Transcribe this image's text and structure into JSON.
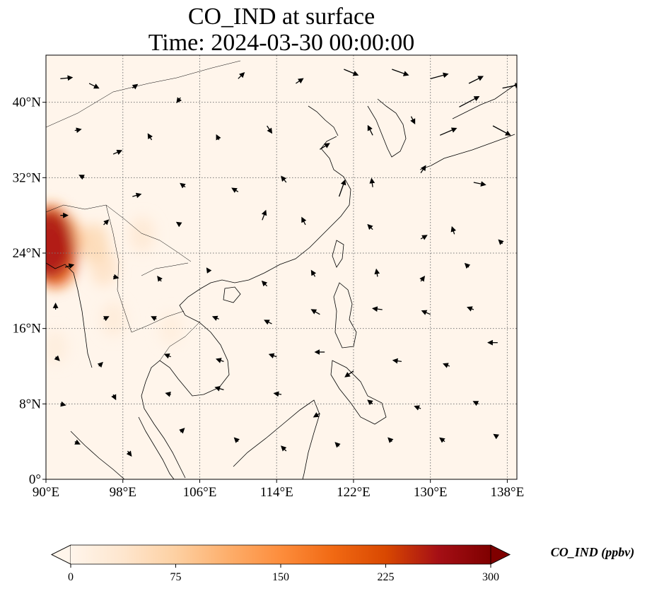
{
  "chart_data": {
    "type": "heatmap",
    "title_line1": "CO_IND at surface",
    "title_line2": "Time: 2024-03-30 00:00:00",
    "lon_range": [
      90,
      139
    ],
    "lat_range": [
      0,
      45
    ],
    "x_ticks": [
      {
        "value": 90,
        "label": "90°E"
      },
      {
        "value": 98,
        "label": "98°E"
      },
      {
        "value": 106,
        "label": "106°E"
      },
      {
        "value": 114,
        "label": "114°E"
      },
      {
        "value": 122,
        "label": "122°E"
      },
      {
        "value": 130,
        "label": "130°E"
      },
      {
        "value": 138,
        "label": "138°E"
      }
    ],
    "y_ticks": [
      {
        "value": 0,
        "label": "0°"
      },
      {
        "value": 8,
        "label": "8°N"
      },
      {
        "value": 16,
        "label": "16°N"
      },
      {
        "value": 24,
        "label": "24°N"
      },
      {
        "value": 32,
        "label": "32°N"
      },
      {
        "value": 40,
        "label": "40°N"
      }
    ],
    "grid": true,
    "colorbar": {
      "label": "CO_IND (ppbv)",
      "min": 0,
      "max": 300,
      "ticks": [
        {
          "value": 0,
          "label": "0"
        },
        {
          "value": 75,
          "label": "75"
        },
        {
          "value": 150,
          "label": "150"
        },
        {
          "value": 225,
          "label": "225"
        },
        {
          "value": 300,
          "label": "300"
        }
      ],
      "colormap": [
        "#fff5eb",
        "#fee6ce",
        "#fdd0a2",
        "#fdae6b",
        "#fd8d3c",
        "#f16913",
        "#d94801",
        "#a50f15",
        "#7f0000"
      ],
      "extend": "both"
    },
    "concentration_hotspots": [
      {
        "lon": 90.3,
        "lat": 25.0,
        "value": 260
      },
      {
        "lon": 91.0,
        "lat": 23.5,
        "value": 200
      },
      {
        "lon": 90.5,
        "lat": 26.2,
        "value": 170
      },
      {
        "lon": 92.0,
        "lat": 25.5,
        "value": 110
      },
      {
        "lon": 95.0,
        "lat": 25.0,
        "value": 60
      },
      {
        "lon": 96.0,
        "lat": 22.5,
        "value": 45
      },
      {
        "lon": 100.0,
        "lat": 26.0,
        "value": 30
      },
      {
        "lon": 97.0,
        "lat": 17.0,
        "value": 25
      },
      {
        "lon": 91.0,
        "lat": 14.0,
        "value": 20
      },
      {
        "lon": 103.0,
        "lat": 16.0,
        "value": 18
      }
    ],
    "wind_vectors": [
      {
        "lon": 91.5,
        "lat": 42.5,
        "u": 1.0,
        "v": 0.1
      },
      {
        "lon": 94.5,
        "lat": 42.0,
        "u": 0.8,
        "v": -0.4
      },
      {
        "lon": 99.0,
        "lat": 41.5,
        "u": 0.4,
        "v": 0.3
      },
      {
        "lon": 104.0,
        "lat": 40.5,
        "u": -0.3,
        "v": -0.4
      },
      {
        "lon": 110.0,
        "lat": 42.5,
        "u": 0.5,
        "v": 0.5
      },
      {
        "lon": 116.0,
        "lat": 42.0,
        "u": 0.6,
        "v": 0.4
      },
      {
        "lon": 121.0,
        "lat": 43.5,
        "u": 1.2,
        "v": -0.5
      },
      {
        "lon": 126.0,
        "lat": 43.5,
        "u": 1.4,
        "v": -0.5
      },
      {
        "lon": 130.0,
        "lat": 42.5,
        "u": 1.5,
        "v": 0.4
      },
      {
        "lon": 134.0,
        "lat": 42.0,
        "u": 1.2,
        "v": 0.6
      },
      {
        "lon": 137.5,
        "lat": 41.5,
        "u": 1.5,
        "v": 0.3
      },
      {
        "lon": 133.0,
        "lat": 39.5,
        "u": 1.7,
        "v": 0.9
      },
      {
        "lon": 136.5,
        "lat": 37.5,
        "u": 1.5,
        "v": -0.8
      },
      {
        "lon": 131.0,
        "lat": 36.5,
        "u": 1.4,
        "v": 0.6
      },
      {
        "lon": 93.0,
        "lat": 37.0,
        "u": 0.5,
        "v": 0.1
      },
      {
        "lon": 97.0,
        "lat": 34.5,
        "u": 0.7,
        "v": 0.3
      },
      {
        "lon": 101.0,
        "lat": 36.0,
        "u": -0.3,
        "v": 0.5
      },
      {
        "lon": 108.0,
        "lat": 36.0,
        "u": -0.2,
        "v": 0.4
      },
      {
        "lon": 113.0,
        "lat": 37.5,
        "u": 0.4,
        "v": -0.6
      },
      {
        "lon": 118.5,
        "lat": 35.0,
        "u": 0.8,
        "v": 0.5
      },
      {
        "lon": 124.0,
        "lat": 36.5,
        "u": -0.4,
        "v": 0.8
      },
      {
        "lon": 128.0,
        "lat": 38.5,
        "u": 0.3,
        "v": -0.6
      },
      {
        "lon": 94.0,
        "lat": 32.0,
        "u": -0.4,
        "v": 0.2
      },
      {
        "lon": 99.0,
        "lat": 30.0,
        "u": 0.7,
        "v": 0.2
      },
      {
        "lon": 104.5,
        "lat": 31.0,
        "u": -0.4,
        "v": 0.3
      },
      {
        "lon": 110.0,
        "lat": 30.5,
        "u": -0.5,
        "v": 0.3
      },
      {
        "lon": 115.0,
        "lat": 31.5,
        "u": -0.4,
        "v": 0.5
      },
      {
        "lon": 120.5,
        "lat": 30.0,
        "u": 0.5,
        "v": 1.4
      },
      {
        "lon": 124.0,
        "lat": 31.0,
        "u": -0.1,
        "v": 0.7
      },
      {
        "lon": 129.0,
        "lat": 32.5,
        "u": 0.4,
        "v": 0.6
      },
      {
        "lon": 134.5,
        "lat": 31.5,
        "u": 1.0,
        "v": -0.2
      },
      {
        "lon": 91.5,
        "lat": 28.0,
        "u": 0.6,
        "v": 0.0
      },
      {
        "lon": 96.0,
        "lat": 27.0,
        "u": 0.4,
        "v": 0.4
      },
      {
        "lon": 104.0,
        "lat": 27.0,
        "u": -0.3,
        "v": 0.2
      },
      {
        "lon": 112.5,
        "lat": 27.5,
        "u": 0.3,
        "v": 0.8
      },
      {
        "lon": 117.0,
        "lat": 27.0,
        "u": -0.3,
        "v": 0.6
      },
      {
        "lon": 124.0,
        "lat": 26.5,
        "u": -0.4,
        "v": 0.4
      },
      {
        "lon": 129.0,
        "lat": 25.5,
        "u": 0.5,
        "v": 0.3
      },
      {
        "lon": 132.5,
        "lat": 26.0,
        "u": -0.2,
        "v": 0.6
      },
      {
        "lon": 137.5,
        "lat": 25.0,
        "u": -0.3,
        "v": 0.3
      },
      {
        "lon": 92.0,
        "lat": 22.5,
        "u": 0.7,
        "v": 0.2
      },
      {
        "lon": 97.0,
        "lat": 21.5,
        "u": 0.4,
        "v": -0.1
      },
      {
        "lon": 102.0,
        "lat": 21.0,
        "u": -0.3,
        "v": 0.4
      },
      {
        "lon": 107.0,
        "lat": 22.0,
        "u": -0.2,
        "v": 0.3
      },
      {
        "lon": 113.0,
        "lat": 20.5,
        "u": -0.4,
        "v": 0.4
      },
      {
        "lon": 118.0,
        "lat": 21.5,
        "u": -0.3,
        "v": 0.5
      },
      {
        "lon": 124.5,
        "lat": 21.5,
        "u": -0.1,
        "v": 0.6
      },
      {
        "lon": 129.0,
        "lat": 21.0,
        "u": 0.3,
        "v": 0.4
      },
      {
        "lon": 134.0,
        "lat": 22.5,
        "u": -0.3,
        "v": 0.3
      },
      {
        "lon": 91.0,
        "lat": 18.0,
        "u": 0.0,
        "v": 0.5
      },
      {
        "lon": 96.0,
        "lat": 17.0,
        "u": 0.4,
        "v": 0.2
      },
      {
        "lon": 101.5,
        "lat": 17.0,
        "u": -0.4,
        "v": 0.2
      },
      {
        "lon": 108.0,
        "lat": 17.0,
        "u": -0.5,
        "v": 0.2
      },
      {
        "lon": 113.5,
        "lat": 16.5,
        "u": -0.6,
        "v": 0.3
      },
      {
        "lon": 118.5,
        "lat": 17.5,
        "u": -0.7,
        "v": 0.4
      },
      {
        "lon": 125.0,
        "lat": 18.0,
        "u": -0.8,
        "v": 0.1
      },
      {
        "lon": 130.0,
        "lat": 17.5,
        "u": -0.7,
        "v": 0.3
      },
      {
        "lon": 134.5,
        "lat": 18.0,
        "u": -0.5,
        "v": 0.2
      },
      {
        "lon": 137.0,
        "lat": 14.5,
        "u": -0.8,
        "v": 0.0
      },
      {
        "lon": 91.0,
        "lat": 13.0,
        "u": 0.3,
        "v": -0.3
      },
      {
        "lon": 95.5,
        "lat": 12.0,
        "u": 0.3,
        "v": 0.3
      },
      {
        "lon": 103.0,
        "lat": 13.0,
        "u": -0.5,
        "v": 0.2
      },
      {
        "lon": 108.5,
        "lat": 12.5,
        "u": -0.6,
        "v": 0.2
      },
      {
        "lon": 114.0,
        "lat": 13.0,
        "u": -0.6,
        "v": 0.2
      },
      {
        "lon": 119.0,
        "lat": 13.5,
        "u": -0.8,
        "v": 0.0
      },
      {
        "lon": 122.0,
        "lat": 11.5,
        "u": -0.7,
        "v": -0.5
      },
      {
        "lon": 127.0,
        "lat": 12.5,
        "u": -0.7,
        "v": 0.1
      },
      {
        "lon": 132.0,
        "lat": 12.0,
        "u": -0.5,
        "v": 0.2
      },
      {
        "lon": 91.5,
        "lat": 8.0,
        "u": 0.4,
        "v": -0.1
      },
      {
        "lon": 97.0,
        "lat": 9.0,
        "u": 0.2,
        "v": -0.4
      },
      {
        "lon": 103.0,
        "lat": 9.0,
        "u": -0.4,
        "v": 0.1
      },
      {
        "lon": 108.5,
        "lat": 9.5,
        "u": -0.7,
        "v": 0.2
      },
      {
        "lon": 114.5,
        "lat": 9.0,
        "u": -0.6,
        "v": 0.1
      },
      {
        "lon": 118.5,
        "lat": 7.0,
        "u": -0.5,
        "v": -0.3
      },
      {
        "lon": 124.0,
        "lat": 8.0,
        "u": -0.4,
        "v": 0.3
      },
      {
        "lon": 129.0,
        "lat": 7.5,
        "u": -0.5,
        "v": 0.2
      },
      {
        "lon": 135.0,
        "lat": 8.0,
        "u": -0.4,
        "v": 0.2
      },
      {
        "lon": 93.0,
        "lat": 4.0,
        "u": 0.4,
        "v": -0.2
      },
      {
        "lon": 98.5,
        "lat": 3.0,
        "u": 0.3,
        "v": -0.4
      },
      {
        "lon": 104.0,
        "lat": 5.0,
        "u": 0.3,
        "v": 0.3
      },
      {
        "lon": 110.0,
        "lat": 4.0,
        "u": -0.3,
        "v": 0.3
      },
      {
        "lon": 115.0,
        "lat": 3.0,
        "u": -0.4,
        "v": 0.4
      },
      {
        "lon": 120.5,
        "lat": 3.5,
        "u": -0.3,
        "v": 0.3
      },
      {
        "lon": 126.0,
        "lat": 4.0,
        "u": -0.3,
        "v": 0.3
      },
      {
        "lon": 131.5,
        "lat": 4.0,
        "u": -0.4,
        "v": 0.3
      },
      {
        "lon": 137.0,
        "lat": 4.5,
        "u": -0.3,
        "v": 0.2
      }
    ]
  }
}
